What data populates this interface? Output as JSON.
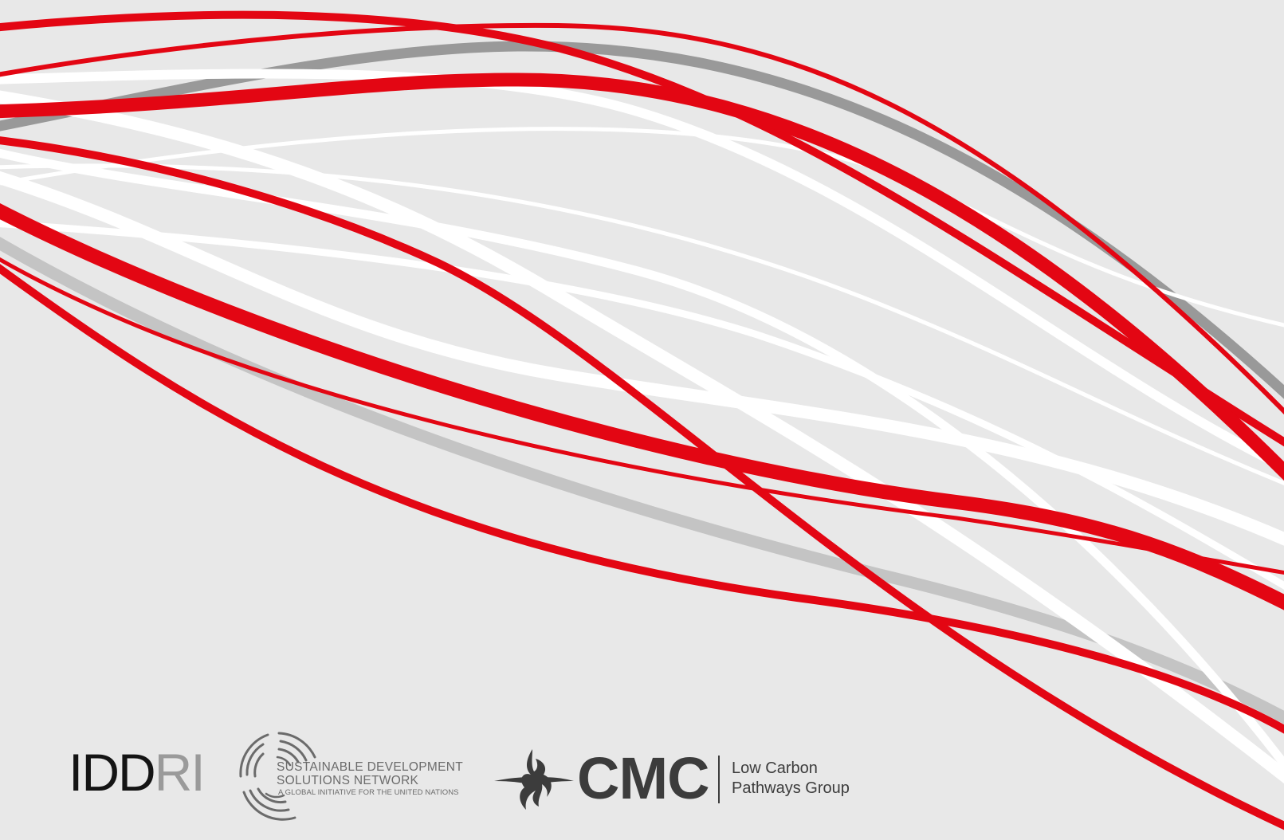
{
  "background_color": "#e8e8e8",
  "wave_colors": {
    "red": "#e30613",
    "white": "#ffffff",
    "gray_dark": "#999999",
    "gray_light": "#c4c4c4"
  },
  "logos": {
    "iddri": {
      "part1": "IDD",
      "part2": "RI",
      "color_dark": "#141414",
      "color_light": "#9a9a9a"
    },
    "sdsn": {
      "line1": "SUSTAINABLE DEVELOPMENT",
      "line2": "SOLUTIONS NETWORK",
      "line3": "A GLOBAL INITIATIVE FOR THE UNITED NATIONS",
      "icon": "concentric-arcs-icon"
    },
    "cmc": {
      "wordmark": "CMC",
      "tag_line1": "Low Carbon",
      "tag_line2": "Pathways Group",
      "icon": "flame-icon"
    }
  }
}
